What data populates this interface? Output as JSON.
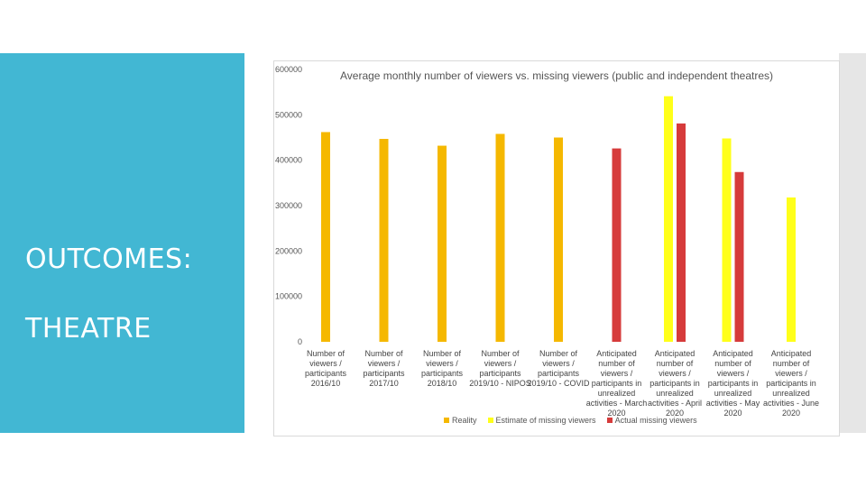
{
  "slide": {
    "heading_line1": "OUTCOMES:",
    "heading_line2": "THEATRE",
    "panel_color": "#42b7d3"
  },
  "chart_data": {
    "type": "bar",
    "title": "Average monthly number of viewers vs. missing viewers (public and independent theatres)",
    "xlabel": "",
    "ylabel": "",
    "ylim": [
      0,
      600000
    ],
    "yticks": [
      0,
      100000,
      200000,
      300000,
      400000,
      500000,
      600000
    ],
    "grid": false,
    "legend_position": "bottom",
    "categories": [
      [
        "Number of",
        "viewers /",
        "participants",
        "2016/10"
      ],
      [
        "Number of",
        "viewers /",
        "participants",
        "2017/10"
      ],
      [
        "Number of",
        "viewers /",
        "participants",
        "2018/10"
      ],
      [
        "Number of",
        "viewers /",
        "participants",
        "2019/10 - NIPOS"
      ],
      [
        "Number of",
        "viewers /",
        "participants",
        "2019/10 - COVID"
      ],
      [
        "Anticipated",
        "number of",
        "viewers /",
        "participants in",
        "unrealized",
        "activities - March",
        "2020"
      ],
      [
        "Anticipated",
        "number of",
        "viewers /",
        "participants in",
        "unrealized",
        "activities - April",
        "2020"
      ],
      [
        "Anticipated",
        "number of",
        "viewers /",
        "participants in",
        "unrealized",
        "activities - May",
        "2020"
      ],
      [
        "Anticipated",
        "number of",
        "viewers /",
        "participants in",
        "unrealized",
        "activities - June",
        "2020"
      ]
    ],
    "series": [
      {
        "name": "Reality",
        "color": "#f5b800",
        "values": [
          462000,
          447000,
          432000,
          458000,
          450000,
          null,
          null,
          null,
          null
        ]
      },
      {
        "name": "Estimate of missing viewers",
        "color": "#ffff1a",
        "values": [
          null,
          null,
          null,
          null,
          null,
          null,
          541000,
          448000,
          318000
        ]
      },
      {
        "name": "Actual missing viewers",
        "color": "#d63b3b",
        "values": [
          null,
          null,
          null,
          null,
          null,
          426000,
          481000,
          374000,
          null
        ]
      }
    ]
  }
}
